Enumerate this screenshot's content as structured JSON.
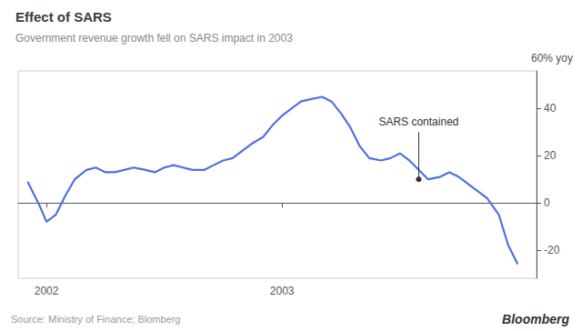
{
  "chart_data": {
    "type": "line",
    "title": "Effect of SARS",
    "subtitle": "Government revenue growth fell on SARS impact in 2003",
    "ylabel": "60% yoy",
    "source": "Source: Ministry of Finance; Blomberg",
    "credit": "Bloomberg",
    "annotations": [
      {
        "text": "SARS contained",
        "x": 2003.58,
        "y": 30,
        "y_end": 10
      }
    ],
    "x": [
      2001.92,
      2001.97,
      2002.0,
      2002.04,
      2002.08,
      2002.12,
      2002.17,
      2002.21,
      2002.25,
      2002.29,
      2002.33,
      2002.37,
      2002.42,
      2002.46,
      2002.5,
      2002.54,
      2002.58,
      2002.62,
      2002.67,
      2002.71,
      2002.75,
      2002.79,
      2002.83,
      2002.87,
      2002.92,
      2002.96,
      2003.0,
      2003.04,
      2003.08,
      2003.12,
      2003.17,
      2003.21,
      2003.25,
      2003.29,
      2003.33,
      2003.37,
      2003.42,
      2003.46,
      2003.5,
      2003.54,
      2003.58,
      2003.62,
      2003.67,
      2003.71,
      2003.75,
      2003.79,
      2003.83,
      2003.87,
      2003.92,
      2003.96,
      2004.0
    ],
    "values": [
      9,
      -1,
      -8,
      -5,
      3,
      10,
      14,
      15,
      13,
      13,
      14,
      15,
      14,
      13,
      15,
      16,
      15,
      14,
      14,
      16,
      18,
      19,
      22,
      25,
      28,
      33,
      37,
      40,
      43,
      44,
      45,
      43,
      38,
      32,
      24,
      19,
      18,
      19,
      21,
      18,
      14,
      10,
      11,
      13,
      11,
      8,
      5,
      2,
      -5,
      -18,
      -26
    ],
    "xlim": [
      2001.88,
      2004.08
    ],
    "xticks": [
      2002,
      2003
    ],
    "ylim": [
      -32,
      56
    ],
    "yticks": [
      -20,
      0,
      20,
      40
    ],
    "grid": false
  }
}
